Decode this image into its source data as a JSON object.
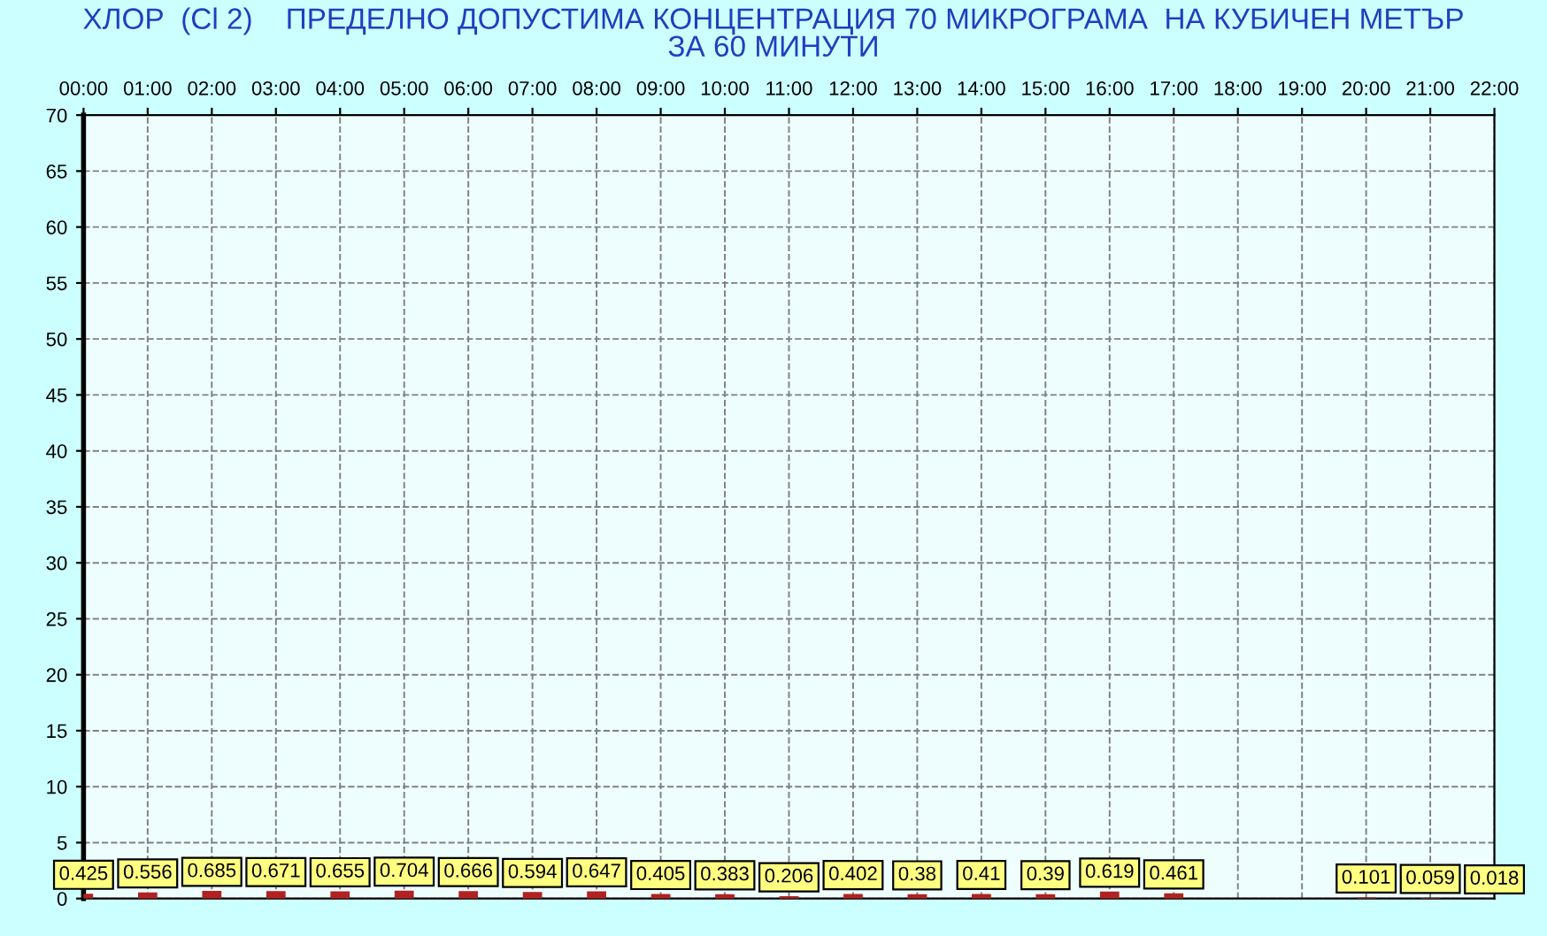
{
  "chart_data": {
    "type": "bar",
    "title": "ХЛОР  (Cl 2)    ПРЕДЕЛНО ДОПУСТИМА КОНЦЕНТРАЦИЯ 70 МИКРОГРАМА  НА КУБИЧЕН МЕТЪР\nЗА 60 МИНУТИ",
    "x": [
      0,
      1,
      2,
      3,
      4,
      5,
      6,
      7,
      8,
      9,
      10,
      11,
      12,
      13,
      14,
      15,
      16,
      17,
      18,
      19,
      20,
      21,
      22
    ],
    "series": [
      {
        "color": "#b22222",
        "values": [
          0.425,
          0.556,
          0.685,
          0.671,
          0.655,
          0.704,
          0.666,
          0.594,
          0.647,
          0.405,
          0.383,
          0.206,
          0.402,
          0.38,
          0.41,
          0.39,
          0.619,
          0.461,
          null,
          null,
          0.101,
          0.059,
          0.018
        ]
      }
    ],
    "xlim": [
      0,
      22
    ],
    "xticks": [
      {
        "value": 0,
        "label": "00:00"
      },
      {
        "value": 1,
        "label": "01:00"
      },
      {
        "value": 2,
        "label": "02:00"
      },
      {
        "value": 3,
        "label": "03:00"
      },
      {
        "value": 4,
        "label": "04:00"
      },
      {
        "value": 5,
        "label": "05:00"
      },
      {
        "value": 6,
        "label": "06:00"
      },
      {
        "value": 7,
        "label": "07:00"
      },
      {
        "value": 8,
        "label": "08:00"
      },
      {
        "value": 9,
        "label": "09:00"
      },
      {
        "value": 10,
        "label": "10:00"
      },
      {
        "value": 11,
        "label": "11:00"
      },
      {
        "value": 12,
        "label": "12:00"
      },
      {
        "value": 13,
        "label": "13:00"
      },
      {
        "value": 14,
        "label": "14:00"
      },
      {
        "value": 15,
        "label": "15:00"
      },
      {
        "value": 16,
        "label": "16:00"
      },
      {
        "value": 17,
        "label": "17:00"
      },
      {
        "value": 18,
        "label": "18:00"
      },
      {
        "value": 19,
        "label": "19:00"
      },
      {
        "value": 20,
        "label": "20:00"
      },
      {
        "value": 21,
        "label": "21:00"
      },
      {
        "value": 22,
        "label": "22:00"
      }
    ],
    "ylim": [
      0,
      70
    ],
    "yticks": [
      0,
      5,
      10,
      15,
      20,
      25,
      30,
      35,
      40,
      45,
      50,
      55,
      60,
      65,
      70
    ],
    "grid": true,
    "data_labels": true
  }
}
